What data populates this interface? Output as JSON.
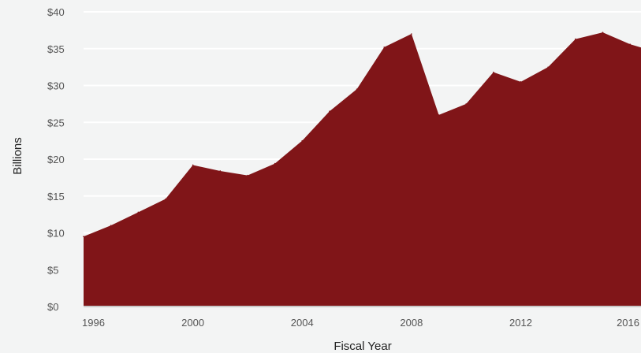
{
  "chart_data": {
    "type": "area",
    "title": "",
    "xlabel": "Fiscal Year",
    "ylabel": "Billions",
    "x": [
      1996,
      1997,
      1998,
      1999,
      2000,
      2001,
      2002,
      2003,
      2004,
      2005,
      2006,
      2007,
      2008,
      2009,
      2010,
      2011,
      2012,
      2013,
      2014,
      2015,
      2016,
      2017
    ],
    "series": [
      {
        "values": [
          9.5,
          11.0,
          12.8,
          14.6,
          19.2,
          18.4,
          17.8,
          19.4,
          22.5,
          26.5,
          29.5,
          35.2,
          37.0,
          26.0,
          27.5,
          31.8,
          30.5,
          32.5,
          36.3,
          37.2,
          35.6,
          34.5
        ]
      }
    ],
    "xlim": [
      1996,
      2016.4
    ],
    "ylim": [
      0,
      40
    ],
    "x_ticks": [
      1996,
      2000,
      2004,
      2008,
      2012,
      2016
    ],
    "y_ticks": [
      {
        "value": 0,
        "label": "$0"
      },
      {
        "value": 5,
        "label": "$5"
      },
      {
        "value": 10,
        "label": "$10"
      },
      {
        "value": 15,
        "label": "$15"
      },
      {
        "value": 20,
        "label": "$20"
      },
      {
        "value": 25,
        "label": "$25"
      },
      {
        "value": 30,
        "label": "$30"
      },
      {
        "value": 35,
        "label": "$35"
      },
      {
        "value": 40,
        "label": "$40"
      }
    ],
    "grid": true,
    "colors": {
      "area": "#801518",
      "grid": "#ffffff",
      "background": "#f3f4f4",
      "baseline": "#c9c9c9"
    }
  }
}
